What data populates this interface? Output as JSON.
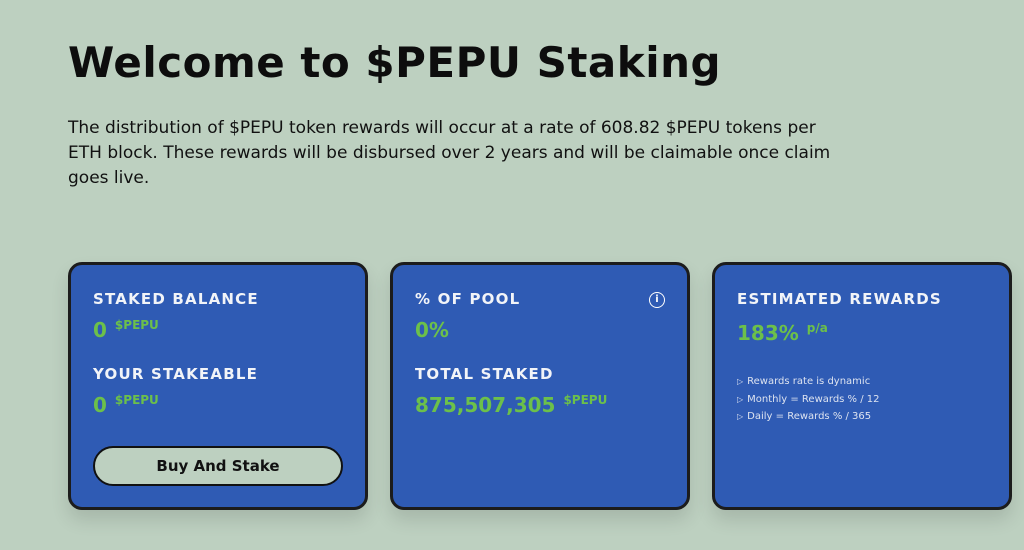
{
  "header": {
    "title": "Welcome to $PEPU Staking",
    "description": "The distribution of $PEPU token rewards will occur at a rate of 608.82 $PEPU tokens per ETH block. These rewards will be disbursed over 2 years and will be claimable once claim goes live."
  },
  "cards": [
    {
      "label": "STAKED BALANCE",
      "value": "0",
      "unit": "$PEPU",
      "label2": "YOUR STAKEABLE",
      "value2": "0",
      "unit2": "$PEPU",
      "button": "Buy And Stake"
    },
    {
      "label": "% OF POOL",
      "value": "0%",
      "label2": "TOTAL STAKED",
      "value2": "875,507,305",
      "unit2": "$PEPU"
    },
    {
      "label": "ESTIMATED REWARDS",
      "value": "183%",
      "unit": "p/a",
      "notes": [
        "Rewards rate is dynamic",
        "Monthly = Rewards % / 12",
        "Daily = Rewards % / 365"
      ]
    }
  ]
}
